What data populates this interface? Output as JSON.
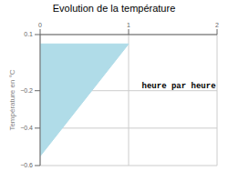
{
  "chart_data": {
    "type": "area",
    "title": "Evolution de la température",
    "y_label": "Température en °C",
    "annotations": [
      {
        "text": "heure par heure",
        "x": 1.15,
        "y": -0.185
      }
    ],
    "x": [
      0,
      1
    ],
    "lower": [
      -0.55,
      0.05
    ],
    "upper": [
      0.05,
      0.05
    ],
    "xlim": [
      0,
      2
    ],
    "ylim": [
      -0.6,
      0.1
    ],
    "xticks": [
      0,
      1,
      2
    ],
    "yticks": [
      0.1,
      -0.2,
      -0.4,
      -0.6
    ],
    "color": "#b0dce8",
    "grid": true
  }
}
